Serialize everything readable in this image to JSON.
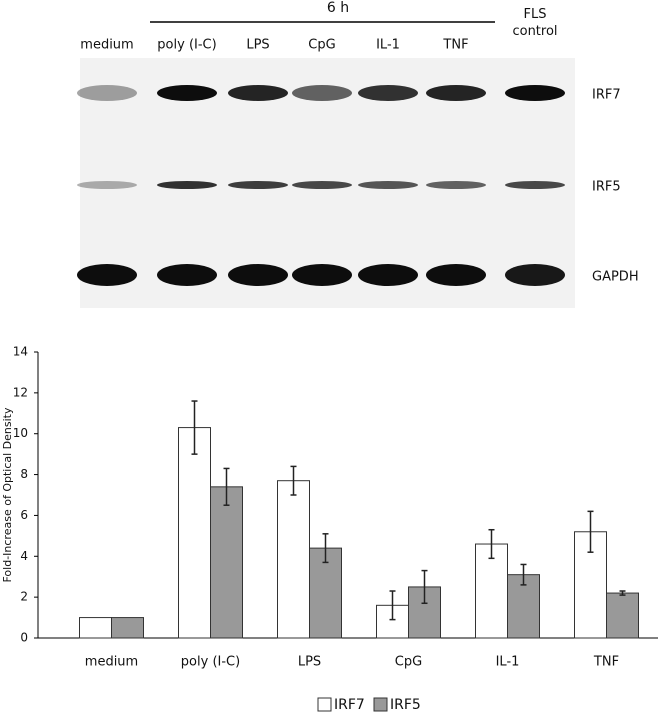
{
  "blot": {
    "time_label": "6 h",
    "lanes": [
      "medium",
      "poly (I-C)",
      "LPS",
      "CpG",
      "IL-1",
      "TNF",
      "FLS control"
    ],
    "rows": [
      "IRF7",
      "IRF5",
      "GAPDH"
    ]
  },
  "chart_data": {
    "type": "bar",
    "y_label": "Fold-Increase of Optical Density",
    "categories": [
      "medium",
      "poly (I-C)",
      "LPS",
      "CpG",
      "IL-1",
      "TNF"
    ],
    "series": [
      {
        "name": "IRF7",
        "color": "#ffffff",
        "values": [
          1.0,
          10.3,
          7.7,
          1.6,
          4.6,
          5.2
        ],
        "errors": [
          0,
          1.3,
          0.7,
          0.7,
          0.7,
          1.0
        ]
      },
      {
        "name": "IRF5",
        "color": "#999999",
        "values": [
          1.0,
          7.4,
          4.4,
          2.5,
          3.1,
          2.2
        ],
        "errors": [
          0,
          0.9,
          0.7,
          0.8,
          0.5,
          0.1
        ]
      }
    ],
    "ylim": [
      0,
      14
    ],
    "yticks": [
      0,
      2,
      4,
      6,
      8,
      10,
      12,
      14
    ],
    "grid": false,
    "legend": "bottom"
  }
}
